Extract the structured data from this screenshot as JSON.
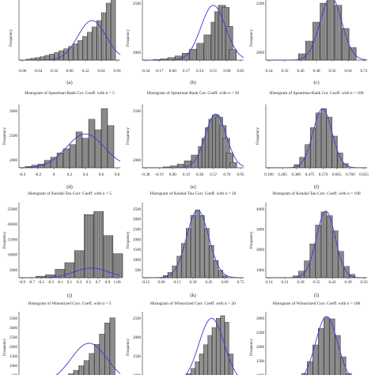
{
  "chart_data": [
    {
      "type": "bar",
      "panel_label": "(a)",
      "title": "",
      "xlabel": "",
      "ylabel": "Frequency",
      "xticks": [
        "-0.96",
        "-0.64",
        "-0.32",
        "0.00",
        "0.32",
        "0.64",
        "0.96"
      ],
      "yticks": [],
      "xlim": [
        -1.1,
        1.05
      ],
      "ylim": [
        0,
        2000
      ],
      "bins": {
        "x": [
          -0.9,
          -0.8,
          -0.7,
          -0.6,
          -0.5,
          -0.4,
          -0.3,
          -0.2,
          -0.1,
          0.0,
          0.1,
          0.2,
          0.3,
          0.4,
          0.5,
          0.6,
          0.7,
          0.8,
          0.9
        ],
        "values": [
          30,
          60,
          80,
          110,
          150,
          190,
          240,
          300,
          360,
          430,
          520,
          620,
          750,
          880,
          1050,
          1250,
          1500,
          1800,
          2000
        ]
      },
      "fit_curve": {
        "mean": 0.45,
        "sd": 0.3,
        "peak": 1250
      }
    },
    {
      "type": "bar",
      "panel_label": "(b)",
      "title": "",
      "xlabel": "",
      "ylabel": "Frequency",
      "xticks": [
        "-0.34",
        "-0.17",
        "0.00",
        "0.17",
        "0.34",
        "0.51",
        "0.68",
        "0.85"
      ],
      "yticks": [
        "2000",
        "2500"
      ],
      "xlim": [
        -0.45,
        0.95
      ],
      "ylim": [
        0,
        3000
      ],
      "bins": {
        "x": [
          -0.25,
          -0.15,
          -0.05,
          0.05,
          0.15,
          0.25,
          0.35,
          0.45,
          0.55,
          0.6,
          0.65,
          0.7,
          0.75,
          0.8
        ],
        "values": [
          30,
          60,
          120,
          200,
          330,
          520,
          800,
          1200,
          1800,
          2300,
          2600,
          2500,
          1600,
          500
        ]
      },
      "fit_curve": {
        "mean": 0.53,
        "sd": 0.17,
        "peak": 2600
      }
    },
    {
      "type": "bar",
      "panel_label": "(c)",
      "title": "",
      "xlabel": "",
      "ylabel": "Frequency",
      "xticks": [
        "0.24",
        "0.32",
        "0.40",
        "0.48",
        "0.56",
        "0.64",
        "0.72"
      ],
      "yticks": [
        "2000",
        "2500"
      ],
      "xlim": [
        0.2,
        0.76
      ],
      "ylim": [
        0,
        3000
      ],
      "bins": {
        "x": [
          0.4,
          0.44,
          0.48,
          0.52,
          0.56,
          0.6,
          0.64,
          0.68
        ],
        "values": [
          300,
          900,
          1800,
          2700,
          3000,
          2600,
          1500,
          600
        ]
      },
      "fit_curve": {
        "mean": 0.56,
        "sd": 0.06,
        "peak": 3000
      }
    },
    {
      "type": "bar",
      "panel_label": "(d)",
      "title": "Histogram of Spearman-Rank Cor. Coeff. with n = 5",
      "xlabel": "",
      "ylabel": "Frequency",
      "xticks": [
        "-0.4",
        "-0.2",
        "0",
        "0.2",
        "0.4",
        "0.6",
        "0.8"
      ],
      "yticks": [
        "2000",
        "2500",
        "3000"
      ],
      "xlim": [
        -0.55,
        1.05
      ],
      "ylim": [
        0,
        3000
      ],
      "bins": {
        "x": [
          -0.4,
          -0.3,
          -0.2,
          -0.1,
          0.0,
          0.1,
          0.2,
          0.3,
          0.4,
          0.5,
          0.6,
          0.7,
          0.8,
          0.9
        ],
        "values": [
          60,
          120,
          180,
          350,
          500,
          700,
          900,
          1100,
          1700,
          1400,
          2300,
          1800,
          2800,
          2000
        ]
      },
      "fit_curve": {
        "mean": 0.5,
        "sd": 0.3,
        "peak": 1600
      }
    },
    {
      "type": "bar",
      "panel_label": "(e)",
      "title": "Histogram of Spearman-Rank Cor. Coeff. with n = 20",
      "xlabel": "",
      "ylabel": "Frequency",
      "xticks": [
        "-0.38",
        "-0.19",
        "0.00",
        "0.19",
        "0.38",
        "0.57",
        "0.76",
        "0.95"
      ],
      "yticks": [
        "2000",
        "2500"
      ],
      "xlim": [
        -0.45,
        1.0
      ],
      "ylim": [
        0,
        3000
      ],
      "bins": {
        "x": [
          -0.1,
          0.0,
          0.1,
          0.2,
          0.3,
          0.4,
          0.45,
          0.5,
          0.55,
          0.6,
          0.65,
          0.7,
          0.75,
          0.8,
          0.85
        ],
        "values": [
          40,
          90,
          170,
          330,
          600,
          1000,
          1400,
          1900,
          2300,
          2500,
          2400,
          2000,
          1400,
          700,
          250
        ]
      },
      "fit_curve": {
        "mean": 0.6,
        "sd": 0.15,
        "peak": 2550
      }
    },
    {
      "type": "bar",
      "panel_label": "(f)",
      "title": "Histogram of Spearman-Rank Cor. Coeff. with n = 100",
      "xlabel": "",
      "ylabel": "Frequency",
      "xticks": [
        "0.190",
        "0.285",
        "0.380",
        "0.475",
        "0.570",
        "0.665",
        "0.760",
        "0.855"
      ],
      "yticks": [],
      "xlim": [
        0.15,
        0.9
      ],
      "ylim": [
        0,
        3000
      ],
      "bins": {
        "x": [
          0.38,
          0.42,
          0.46,
          0.5,
          0.54,
          0.58,
          0.62,
          0.66,
          0.7,
          0.74
        ],
        "values": [
          150,
          500,
          1100,
          1900,
          2600,
          2800,
          2400,
          1500,
          700,
          200
        ]
      },
      "fit_curve": {
        "mean": 0.57,
        "sd": 0.07,
        "peak": 2800
      }
    },
    {
      "type": "bar",
      "panel_label": "(j)",
      "title": "Histogram of Kendal-Tau Corr. Coeff. with n = 5",
      "xlabel": "",
      "ylabel": "Frequency",
      "xticks": [
        "-0.9",
        "-0.7",
        "-0.5",
        "-0.3",
        "-0.1",
        "0.1",
        "0.3",
        "0.5",
        "0.7",
        "0.9",
        "1.00"
      ],
      "yticks": [
        "5000",
        "10000",
        "15000",
        "20000",
        "25000"
      ],
      "xlim": [
        -1.05,
        1.05
      ],
      "ylim": [
        0,
        25000
      ],
      "bins": {
        "x": [
          -0.6,
          -0.4,
          -0.2,
          0.0,
          0.2,
          0.4,
          0.6,
          0.8,
          1.0
        ],
        "values": [
          500,
          1000,
          2800,
          5000,
          9000,
          21000,
          22000,
          14000,
          8000
        ]
      },
      "fit_curve": {
        "mean": 0.45,
        "sd": 0.35,
        "peak": 3200
      }
    },
    {
      "type": "bar",
      "panel_label": "(k)",
      "title": "Histogram of Kendal-Tau Corr. Coeff. with n = 20",
      "xlabel": "",
      "ylabel": "Frequency",
      "xticks": [
        "-0.15",
        "0.00",
        "0.15",
        "0.30",
        "0.45",
        "0.60",
        "0.75"
      ],
      "yticks": [
        "500",
        "1000",
        "1500",
        "2000",
        "2500",
        "3000",
        "3500"
      ],
      "xlim": [
        -0.25,
        0.85
      ],
      "ylim": [
        0,
        3500
      ],
      "bins": {
        "x": [
          0.0,
          0.05,
          0.1,
          0.15,
          0.2,
          0.25,
          0.3,
          0.35,
          0.4,
          0.45,
          0.5,
          0.55,
          0.6,
          0.65
        ],
        "values": [
          100,
          250,
          550,
          1000,
          1600,
          2300,
          2900,
          3150,
          2900,
          2300,
          1500,
          800,
          350,
          100
        ]
      },
      "fit_curve": {
        "mean": 0.35,
        "sd": 0.12,
        "peak": 3150
      }
    },
    {
      "type": "bar",
      "panel_label": "(l)",
      "title": "Histogram of Kendal-Tau Corr. Coeff. with n = 100",
      "xlabel": "",
      "ylabel": "Frequency",
      "xticks": [
        "0.14",
        "0.21",
        "0.28",
        "0.35",
        "0.42",
        "0.49",
        "0.56"
      ],
      "yticks": [
        "1000",
        "2000",
        "3000",
        "4000"
      ],
      "xlim": [
        0.08,
        0.62
      ],
      "ylim": [
        0,
        4000
      ],
      "bins": {
        "x": [
          0.24,
          0.27,
          0.3,
          0.33,
          0.36,
          0.39,
          0.42,
          0.45,
          0.48,
          0.51,
          0.54
        ],
        "values": [
          100,
          350,
          900,
          1800,
          2800,
          3500,
          3300,
          2500,
          1400,
          600,
          180
        ]
      },
      "fit_curve": {
        "mean": 0.4,
        "sd": 0.05,
        "peak": 3550
      }
    },
    {
      "type": "bar",
      "panel_label": "",
      "title": "Histogram of Winsorized Corr. Coeff. with n = 5",
      "xlabel": "",
      "ylabel": "Frequency",
      "xticks": [],
      "yticks": [
        "500",
        "1000",
        "1500",
        "2000",
        "2500",
        "3000",
        "3500"
      ],
      "xlim": [
        -0.9,
        1.05
      ],
      "ylim": [
        0,
        3500
      ],
      "bins": {
        "x": [
          -0.3,
          -0.2,
          -0.1,
          0.0,
          0.1,
          0.2,
          0.3,
          0.4,
          0.5,
          0.6,
          0.7,
          0.8,
          0.9
        ],
        "values": [
          80,
          140,
          220,
          320,
          450,
          620,
          850,
          1100,
          1450,
          1900,
          2400,
          2950,
          3200
        ]
      },
      "fit_curve": {
        "mean": 0.45,
        "sd": 0.35,
        "peak": 1950
      }
    },
    {
      "type": "bar",
      "panel_label": "",
      "title": "Histogram of Winsorized Corr. Coeff. with n = 20",
      "xlabel": "",
      "ylabel": "Frequency",
      "xticks": [],
      "yticks": [
        "1000",
        "1500",
        "2000",
        "2500"
      ],
      "xlim": [
        -0.2,
        1.0
      ],
      "ylim": [
        0,
        2700
      ],
      "bins": {
        "x": [
          0.3,
          0.35,
          0.4,
          0.45,
          0.5,
          0.55,
          0.6,
          0.65,
          0.7,
          0.75,
          0.8,
          0.85
        ],
        "values": [
          200,
          350,
          550,
          800,
          1100,
          1450,
          1800,
          2100,
          2450,
          2550,
          2300,
          1100
        ]
      },
      "fit_curve": {
        "mean": 0.62,
        "sd": 0.15,
        "peak": 2450
      }
    },
    {
      "type": "bar",
      "panel_label": "",
      "title": "Histogram of Winsorized Corr. Coeff. with n = 100",
      "xlabel": "",
      "ylabel": "Frequency",
      "xticks": [],
      "yticks": [
        "1000",
        "1500",
        "2000",
        "2500",
        "3000"
      ],
      "xlim": [
        0.3,
        0.85
      ],
      "ylim": [
        0,
        3000
      ],
      "bins": {
        "x": [
          0.48,
          0.51,
          0.54,
          0.57,
          0.6,
          0.63,
          0.66,
          0.69,
          0.72,
          0.75
        ],
        "values": [
          150,
          400,
          900,
          1600,
          2300,
          2750,
          2700,
          2000,
          1100,
          400
        ]
      },
      "fit_curve": {
        "mean": 0.63,
        "sd": 0.06,
        "peak": 2800
      }
    }
  ],
  "colors": {
    "bar_fill": "#7b7b7b",
    "bar_edge": "#1a1a1a",
    "fit_curve": "#3a3ad6",
    "axis": "#444444"
  }
}
